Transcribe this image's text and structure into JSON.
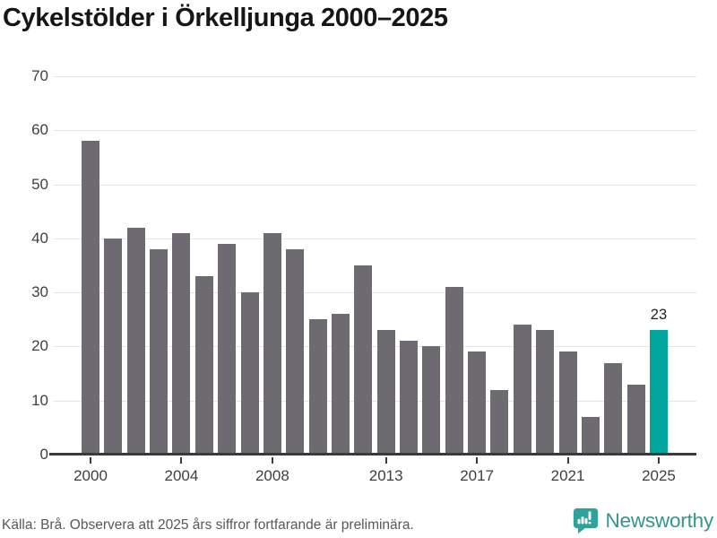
{
  "title": "Cykelstölder i Örkelljunga 2000–2025",
  "footer": {
    "source_note": "Källa: Brå. Observera att 2025 års siffror fortfarande är preliminära.",
    "brand": "Newsworthy"
  },
  "colors": {
    "bar": "#6d6a72",
    "highlight": "#00a59c",
    "grid": "#e4e4e4",
    "axis": "#3a3a3a",
    "brand_icon": "#2fa29a",
    "brand_text": "#35948e"
  },
  "chart_data": {
    "type": "bar",
    "title": "Cykelstölder i Örkelljunga 2000–2025",
    "categories": [
      2000,
      2001,
      2002,
      2003,
      2004,
      2005,
      2006,
      2007,
      2008,
      2009,
      2010,
      2011,
      2012,
      2013,
      2014,
      2015,
      2016,
      2017,
      2018,
      2019,
      2020,
      2021,
      2022,
      2023,
      2024,
      2025
    ],
    "values": [
      58,
      40,
      42,
      38,
      41,
      33,
      39,
      30,
      41,
      38,
      25,
      26,
      35,
      23,
      21,
      20,
      31,
      19,
      12,
      24,
      23,
      19,
      7,
      17,
      13,
      23
    ],
    "highlight_index": 25,
    "highlight_label": "23",
    "xlabel": "",
    "ylabel": "",
    "ylim": [
      0,
      70
    ],
    "y_ticks": [
      0,
      10,
      20,
      30,
      40,
      50,
      60,
      70
    ],
    "x_tick_indices": [
      0,
      4,
      8,
      13,
      17,
      21,
      25
    ],
    "x_tick_labels": [
      "2000",
      "2004",
      "2008",
      "2013",
      "2017",
      "2021",
      "2025"
    ],
    "grid": "horizontal",
    "legend": "none"
  }
}
